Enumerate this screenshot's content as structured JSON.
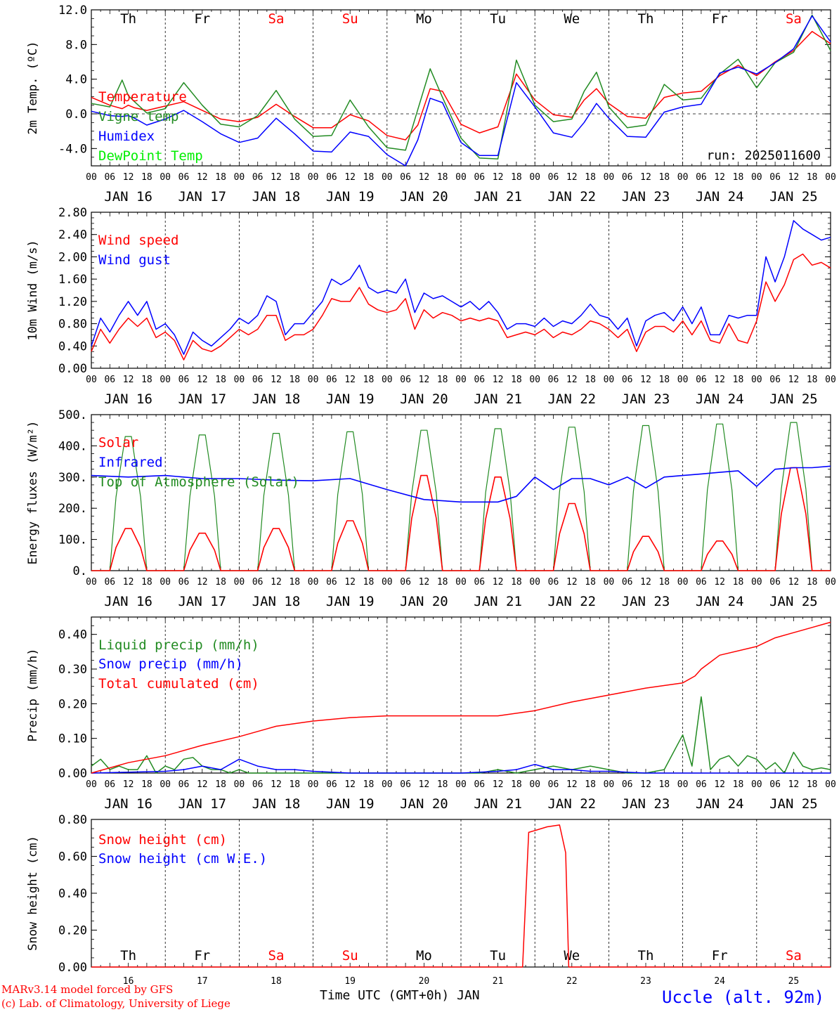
{
  "days": {
    "labels": [
      "Th",
      "Fr",
      "Sa",
      "Su",
      "Mo",
      "Tu",
      "We",
      "Th",
      "Fr",
      "Sa"
    ],
    "weekend": [
      false,
      false,
      true,
      true,
      false,
      false,
      false,
      false,
      false,
      true
    ],
    "dates": [
      "JAN 16",
      "JAN 17",
      "JAN 18",
      "JAN 19",
      "JAN 20",
      "JAN 21",
      "JAN 22",
      "JAN 23",
      "JAN 24",
      "JAN 25"
    ],
    "day_numbers": [
      "16",
      "17",
      "18",
      "19",
      "20",
      "21",
      "22",
      "23",
      "24",
      "25"
    ],
    "hour_ticks": [
      "00",
      "06",
      "12",
      "18"
    ]
  },
  "footer": {
    "model": "MARv3.14 model forced by GFS",
    "copyright": "(c) Lab. of Climatology, University of Liege",
    "xlabel": "Time UTC (GMT+0h) JAN",
    "station": "Uccle (alt. 92m)"
  },
  "colors": {
    "red": "#ff0000",
    "green": "#228b22",
    "blue": "#0000ff",
    "lime": "#00ee00",
    "weekend": "#ff0000"
  },
  "chart_data": [
    {
      "type": "line",
      "ylabel": "2m Temp. (ºC)",
      "ylim": [
        -6,
        12
      ],
      "yticks": [
        "12.0",
        "8.0",
        "4.0",
        "0.0",
        "-4.0"
      ],
      "yticks_values": [
        12,
        8,
        4,
        0,
        -4
      ],
      "annotation": "run: 2025011600",
      "x_hours": [
        0,
        6,
        10,
        12,
        14,
        18,
        24,
        30,
        36,
        42,
        48,
        54,
        60,
        66,
        72,
        78,
        84,
        90,
        96,
        102,
        106,
        110,
        114,
        120,
        126,
        132,
        138,
        144,
        150,
        156,
        160,
        164,
        168,
        174,
        180,
        186,
        192,
        198,
        204,
        210,
        216,
        222,
        228,
        234,
        240
      ],
      "series": [
        {
          "name": "Temperature",
          "color": "#ff0000",
          "values": [
            1.9,
            1.0,
            0.6,
            1.0,
            0.7,
            0.4,
            0.9,
            1.4,
            0.4,
            -0.6,
            -0.9,
            -0.4,
            1.1,
            -0.3,
            -1.6,
            -1.6,
            -0.1,
            -0.8,
            -2.5,
            -3.0,
            -1.3,
            2.9,
            2.6,
            -1.2,
            -2.2,
            -1.5,
            4.6,
            1.6,
            -0.1,
            -0.4,
            1.6,
            2.9,
            1.2,
            -0.3,
            -0.5,
            1.9,
            2.4,
            2.6,
            4.4,
            5.6,
            4.4,
            6.0,
            7.3,
            9.5,
            8.1
          ]
        },
        {
          "name": "Vigne temp",
          "color": "#228b22",
          "values": [
            1.2,
            0.8,
            3.9,
            2.1,
            1.4,
            0.1,
            0.6,
            3.6,
            1.0,
            -1.2,
            -1.5,
            -0.2,
            2.7,
            -0.6,
            -2.6,
            -2.5,
            1.6,
            -1.5,
            -3.9,
            -4.2,
            0.5,
            5.2,
            1.9,
            -2.8,
            -5.1,
            -5.2,
            6.2,
            1.0,
            -0.9,
            -0.6,
            2.6,
            4.8,
            0.8,
            -1.6,
            -1.3,
            3.4,
            1.6,
            1.8,
            4.6,
            6.3,
            3.0,
            5.9,
            7.1,
            11.4,
            7.3
          ]
        },
        {
          "name": "Humidex",
          "color": "#0000ff",
          "values": [
            0.3,
            -0.2,
            -0.3,
            -0.2,
            -0.5,
            -1.3,
            -0.6,
            0.4,
            -0.9,
            -2.3,
            -3.3,
            -2.8,
            -0.5,
            -2.3,
            -4.3,
            -4.4,
            -2.1,
            -2.6,
            -4.7,
            -6.0,
            -3.0,
            1.8,
            1.3,
            -3.3,
            -4.8,
            -4.8,
            3.6,
            0.8,
            -2.2,
            -2.7,
            -1.0,
            1.2,
            -0.5,
            -2.6,
            -2.7,
            0.2,
            0.8,
            1.1,
            4.7,
            5.4,
            4.6,
            5.9,
            7.5,
            11.3,
            8.3
          ]
        },
        {
          "name": "DewPoint Temp",
          "color": "#00ee00",
          "values": []
        }
      ]
    },
    {
      "type": "line",
      "ylabel": "10m Wind (m/s)",
      "ylim": [
        0,
        2.8
      ],
      "yticks": [
        "2.80",
        "2.40",
        "2.00",
        "1.60",
        "1.20",
        "0.80",
        "0.40",
        "0.00"
      ],
      "yticks_values": [
        2.8,
        2.4,
        2.0,
        1.6,
        1.2,
        0.8,
        0.4,
        0.0
      ],
      "x_hours": [
        0,
        3,
        6,
        9,
        12,
        15,
        18,
        21,
        24,
        27,
        30,
        33,
        36,
        39,
        42,
        45,
        48,
        51,
        54,
        57,
        60,
        63,
        66,
        69,
        72,
        75,
        78,
        81,
        84,
        87,
        90,
        93,
        96,
        99,
        102,
        105,
        108,
        111,
        114,
        117,
        120,
        123,
        126,
        129,
        132,
        135,
        138,
        141,
        144,
        147,
        150,
        153,
        156,
        159,
        162,
        165,
        168,
        171,
        174,
        177,
        180,
        183,
        186,
        189,
        192,
        195,
        198,
        201,
        204,
        207,
        210,
        213,
        216,
        219,
        222,
        225,
        228,
        231,
        234,
        237,
        240
      ],
      "series": [
        {
          "name": "Wind speed",
          "color": "#ff0000",
          "values": [
            0.3,
            0.7,
            0.45,
            0.7,
            0.9,
            0.75,
            0.9,
            0.55,
            0.65,
            0.5,
            0.15,
            0.5,
            0.35,
            0.3,
            0.4,
            0.55,
            0.7,
            0.6,
            0.7,
            0.95,
            0.95,
            0.5,
            0.6,
            0.6,
            0.7,
            0.95,
            1.25,
            1.2,
            1.2,
            1.45,
            1.15,
            1.05,
            1.0,
            1.05,
            1.25,
            0.7,
            1.05,
            0.9,
            1.0,
            0.95,
            0.85,
            0.9,
            0.85,
            0.9,
            0.85,
            0.55,
            0.6,
            0.65,
            0.6,
            0.7,
            0.55,
            0.65,
            0.6,
            0.7,
            0.85,
            0.8,
            0.7,
            0.55,
            0.7,
            0.3,
            0.65,
            0.75,
            0.75,
            0.65,
            0.85,
            0.6,
            0.85,
            0.5,
            0.45,
            0.8,
            0.5,
            0.45,
            0.85,
            1.55,
            1.2,
            1.5,
            1.95,
            2.05,
            1.85,
            1.9,
            1.8
          ]
        },
        {
          "name": "Wind gust",
          "color": "#0000ff",
          "values": [
            0.4,
            0.9,
            0.65,
            0.95,
            1.2,
            0.95,
            1.2,
            0.7,
            0.8,
            0.6,
            0.25,
            0.65,
            0.5,
            0.4,
            0.55,
            0.7,
            0.9,
            0.8,
            0.95,
            1.3,
            1.2,
            0.6,
            0.8,
            0.8,
            1.0,
            1.2,
            1.6,
            1.5,
            1.6,
            1.85,
            1.45,
            1.35,
            1.4,
            1.35,
            1.6,
            1.0,
            1.35,
            1.25,
            1.3,
            1.2,
            1.1,
            1.2,
            1.05,
            1.2,
            1.0,
            0.7,
            0.8,
            0.8,
            0.75,
            0.9,
            0.75,
            0.85,
            0.8,
            0.95,
            1.15,
            0.95,
            0.9,
            0.7,
            0.9,
            0.4,
            0.85,
            0.95,
            1.0,
            0.85,
            1.1,
            0.8,
            1.1,
            0.6,
            0.6,
            0.95,
            0.9,
            0.95,
            0.95,
            2.0,
            1.55,
            2.0,
            2.65,
            2.5,
            2.4,
            2.3,
            2.35
          ]
        }
      ]
    },
    {
      "type": "line",
      "ylabel": "Energy fluxes (W/m²)",
      "ylim": [
        0,
        500
      ],
      "yticks": [
        "500.",
        "400.",
        "300.",
        "200.",
        "100.",
        "0."
      ],
      "yticks_values": [
        500,
        400,
        300,
        200,
        100,
        0
      ],
      "solar_peaks": [
        135,
        120,
        135,
        160,
        305,
        300,
        215,
        110,
        95,
        330
      ],
      "toa_peaks": [
        430,
        435,
        440,
        445,
        450,
        455,
        460,
        465,
        470,
        475
      ],
      "x_hours": [
        0,
        12,
        24,
        36,
        48,
        60,
        72,
        84,
        96,
        108,
        120,
        132,
        138,
        144,
        150,
        156,
        162,
        168,
        174,
        180,
        186,
        192,
        198,
        204,
        210,
        216,
        222,
        228,
        234,
        240
      ],
      "series": [
        {
          "name": "Solar",
          "color": "#ff0000",
          "values": []
        },
        {
          "name": "Infrared",
          "color": "#0000ff",
          "values": [
            305,
            300,
            305,
            295,
            295,
            290,
            288,
            295,
            260,
            228,
            220,
            220,
            238,
            300,
            260,
            295,
            295,
            275,
            300,
            265,
            300,
            305,
            310,
            315,
            320,
            270,
            325,
            330,
            330,
            335
          ]
        },
        {
          "name": "Top of Atmosphere (Solar)",
          "color": "#228b22",
          "values": []
        }
      ]
    },
    {
      "type": "line",
      "ylabel": "Precip (mm/h)",
      "ylim": [
        0,
        0.45
      ],
      "yticks": [
        "0.40",
        "0.30",
        "0.20",
        "0.10",
        "0.00"
      ],
      "yticks_values": [
        0.4,
        0.3,
        0.2,
        0.1,
        0.0
      ],
      "series": [
        {
          "name": "Liquid precip (mm/h)",
          "color": "#228b22",
          "x_hours": [
            0,
            3,
            6,
            9,
            12,
            15,
            18,
            21,
            24,
            27,
            30,
            33,
            36,
            39,
            42,
            45,
            48,
            51,
            54,
            57,
            60,
            66,
            72,
            84,
            96,
            108,
            120,
            126,
            132,
            138,
            144,
            150,
            156,
            162,
            168,
            174,
            180,
            186,
            192,
            195,
            198,
            201,
            204,
            207,
            210,
            213,
            216,
            219,
            222,
            225,
            228,
            231,
            234,
            237,
            240
          ],
          "values": [
            0.02,
            0.04,
            0.01,
            0.02,
            0.01,
            0.01,
            0.05,
            0.0,
            0.02,
            0.01,
            0.04,
            0.045,
            0.02,
            0.01,
            0.01,
            0.0,
            0.01,
            0.0,
            0.0,
            0.0,
            0.0,
            0.0,
            0.0,
            0.0,
            0.0,
            0.0,
            0.0,
            0.0,
            0.01,
            0.0,
            0.01,
            0.02,
            0.01,
            0.02,
            0.01,
            0.0,
            0.0,
            0.01,
            0.11,
            0.02,
            0.22,
            0.01,
            0.04,
            0.05,
            0.02,
            0.05,
            0.04,
            0.01,
            0.03,
            0.0,
            0.06,
            0.02,
            0.01,
            0.015,
            0.01
          ]
        },
        {
          "name": "Snow precip (mm/h)",
          "color": "#0000ff",
          "x_hours": [
            0,
            24,
            30,
            36,
            42,
            48,
            54,
            60,
            66,
            72,
            84,
            96,
            120,
            132,
            138,
            144,
            150,
            156,
            162,
            168,
            180,
            192,
            240
          ],
          "values": [
            0.0,
            0.005,
            0.01,
            0.02,
            0.01,
            0.04,
            0.02,
            0.01,
            0.01,
            0.005,
            0.0,
            0.0,
            0.0,
            0.005,
            0.01,
            0.025,
            0.01,
            0.01,
            0.005,
            0.005,
            0.0,
            0.0,
            0.0
          ]
        },
        {
          "name": "Total cumulated (cm)",
          "color": "#ff0000",
          "x_hours": [
            0,
            12,
            24,
            36,
            48,
            60,
            72,
            84,
            96,
            108,
            120,
            132,
            144,
            156,
            168,
            180,
            192,
            196,
            198,
            204,
            216,
            222,
            228,
            234,
            240
          ],
          "values": [
            0.0,
            0.03,
            0.05,
            0.08,
            0.105,
            0.135,
            0.15,
            0.16,
            0.165,
            0.165,
            0.165,
            0.165,
            0.18,
            0.205,
            0.225,
            0.245,
            0.26,
            0.28,
            0.3,
            0.34,
            0.365,
            0.39,
            0.405,
            0.42,
            0.435
          ]
        }
      ]
    },
    {
      "type": "line",
      "ylabel": "Snow height (cm)",
      "ylim": [
        0,
        0.8
      ],
      "yticks": [
        "0.80",
        "0.60",
        "0.40",
        "0.20",
        "0.00"
      ],
      "yticks_values": [
        0.8,
        0.6,
        0.4,
        0.2,
        0.0
      ],
      "series": [
        {
          "name": "Snow height (cm)",
          "color": "#ff0000",
          "x_hours": [
            0,
            140,
            142,
            144,
            148,
            152,
            154,
            155,
            240
          ],
          "values": [
            0.0,
            0.0,
            0.73,
            0.74,
            0.76,
            0.77,
            0.62,
            0.0,
            0.0
          ]
        },
        {
          "name": "Snow height (cm W.E.)",
          "color": "#0000ff",
          "x_hours": [],
          "values": []
        }
      ]
    }
  ]
}
